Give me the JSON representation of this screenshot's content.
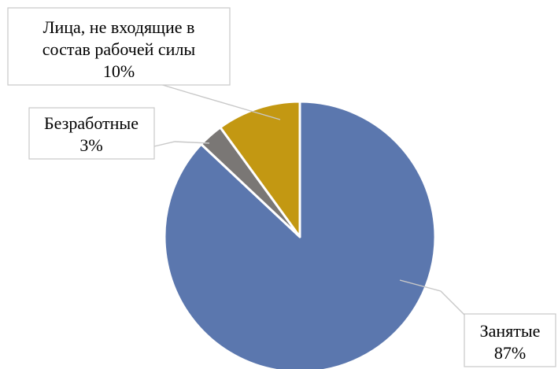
{
  "chart_data": {
    "type": "pie",
    "title": "",
    "slices": [
      {
        "name": "Занятые",
        "value": 87,
        "pct_label": "87%",
        "color": "#5b77ae"
      },
      {
        "name": "Безработные",
        "value": 3,
        "pct_label": "3%",
        "color": "#7a7775"
      },
      {
        "name_lines": [
          "Лица, не входящие в",
          "состав рабочей силы"
        ],
        "value": 10,
        "pct_label": "10%",
        "color": "#c39812"
      }
    ],
    "legend": "none",
    "start_angle": "12 o'clock",
    "direction": "clockwise"
  }
}
